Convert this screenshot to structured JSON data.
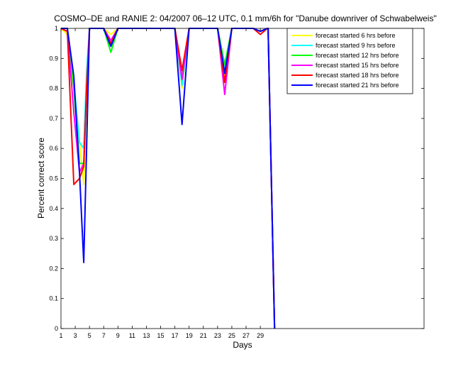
{
  "chart_data": {
    "type": "line",
    "title": "COSMO–DE and RANIE 2: 04/2007 06–12 UTC, 0.1 mm/6h for \"Danube downriver of Schwabelweis\"",
    "xlabel": "Days",
    "ylabel": "Percent correct score",
    "xlim": [
      1,
      52
    ],
    "ylim": [
      0,
      1
    ],
    "xticks": [
      "1",
      "3",
      "5",
      "7",
      "9",
      "11",
      "13",
      "15",
      "17",
      "19",
      "21",
      "23",
      "25",
      "27",
      "29"
    ],
    "yticks": [
      "0",
      "0.1",
      "0.2",
      "0.3",
      "0.4",
      "0.5",
      "0.6",
      "0.7",
      "0.8",
      "0.9",
      "1"
    ],
    "legend_position": "top-right",
    "grid": false,
    "series": [
      {
        "name": "forecast started 6 hrs before",
        "color": "#ffff00",
        "points": [
          [
            1,
            1
          ],
          [
            1.9,
            0.98
          ],
          [
            2.8,
            0.8
          ],
          [
            3.6,
            0.62
          ],
          [
            4.2,
            0.48
          ],
          [
            4.6,
            0.7
          ],
          [
            5,
            1
          ],
          [
            7,
            1
          ],
          [
            8,
            0.98
          ],
          [
            9,
            1
          ],
          [
            17,
            1
          ],
          [
            18,
            0.8
          ],
          [
            19,
            1
          ],
          [
            23,
            1
          ],
          [
            24,
            0.84
          ],
          [
            25,
            1
          ],
          [
            28,
            1
          ],
          [
            29,
            0.99
          ],
          [
            30,
            1
          ],
          [
            30.1,
            1
          ],
          [
            31,
            0
          ]
        ]
      },
      {
        "name": "forecast started 9 hrs before",
        "color": "#00ffff",
        "points": [
          [
            1,
            1
          ],
          [
            1.9,
            1
          ],
          [
            2.8,
            0.82
          ],
          [
            3.6,
            0.62
          ],
          [
            4.2,
            0.6
          ],
          [
            4.6,
            0.85
          ],
          [
            5,
            1
          ],
          [
            7,
            1
          ],
          [
            8,
            0.95
          ],
          [
            9,
            1
          ],
          [
            17,
            1
          ],
          [
            18,
            0.81
          ],
          [
            19,
            1
          ],
          [
            23,
            1
          ],
          [
            24,
            0.86
          ],
          [
            25,
            1
          ],
          [
            28,
            1
          ],
          [
            29,
            0.99
          ],
          [
            30,
            1
          ],
          [
            30.1,
            1
          ],
          [
            31,
            0
          ]
        ]
      },
      {
        "name": "forecast started 12 hrs before",
        "color": "#00ff00",
        "points": [
          [
            1,
            1
          ],
          [
            1.9,
            1
          ],
          [
            2.8,
            0.8
          ],
          [
            3.6,
            0.55
          ],
          [
            4.2,
            0.55
          ],
          [
            4.6,
            0.8
          ],
          [
            5,
            1
          ],
          [
            7,
            1
          ],
          [
            8,
            0.92
          ],
          [
            9,
            1
          ],
          [
            17,
            1
          ],
          [
            18,
            0.84
          ],
          [
            19,
            1
          ],
          [
            23,
            1
          ],
          [
            24,
            0.88
          ],
          [
            25,
            1
          ],
          [
            28,
            1
          ],
          [
            29,
            0.99
          ],
          [
            30,
            1
          ],
          [
            30.1,
            1
          ],
          [
            31,
            0
          ]
        ]
      },
      {
        "name": "forecast started 15 hrs before",
        "color": "#ff00ff",
        "points": [
          [
            1,
            1
          ],
          [
            1.9,
            0.99
          ],
          [
            2.8,
            0.72
          ],
          [
            3.6,
            0.52
          ],
          [
            4.2,
            0.55
          ],
          [
            4.6,
            0.8
          ],
          [
            5,
            1
          ],
          [
            7,
            1
          ],
          [
            8,
            0.96
          ],
          [
            9,
            1
          ],
          [
            17,
            1
          ],
          [
            18,
            0.83
          ],
          [
            19,
            1
          ],
          [
            23,
            1
          ],
          [
            24,
            0.78
          ],
          [
            25,
            1
          ],
          [
            28,
            1
          ],
          [
            29,
            0.99
          ],
          [
            30,
            1
          ],
          [
            30.1,
            1
          ],
          [
            31,
            0
          ]
        ]
      },
      {
        "name": "forecast started 18 hrs before",
        "color": "#ff0000",
        "points": [
          [
            1,
            1
          ],
          [
            1.9,
            0.99
          ],
          [
            2.8,
            0.48
          ],
          [
            3.6,
            0.5
          ],
          [
            4.2,
            0.54
          ],
          [
            4.6,
            0.8
          ],
          [
            5,
            1
          ],
          [
            7,
            1
          ],
          [
            8,
            0.95
          ],
          [
            9,
            1
          ],
          [
            17,
            1
          ],
          [
            18,
            0.86
          ],
          [
            19,
            1
          ],
          [
            23,
            1
          ],
          [
            24,
            0.82
          ],
          [
            25,
            1
          ],
          [
            28,
            1
          ],
          [
            29,
            0.98
          ],
          [
            30,
            1
          ],
          [
            30.1,
            1
          ],
          [
            31,
            0
          ]
        ]
      },
      {
        "name": "forecast started 21 hrs before",
        "color": "#0000ff",
        "points": [
          [
            1,
            1
          ],
          [
            1.9,
            1
          ],
          [
            2.8,
            0.84
          ],
          [
            3.6,
            0.52
          ],
          [
            4.2,
            0.22
          ],
          [
            4.6,
            0.6
          ],
          [
            5,
            1
          ],
          [
            7,
            1
          ],
          [
            8,
            0.94
          ],
          [
            9,
            1
          ],
          [
            17,
            1
          ],
          [
            18,
            0.68
          ],
          [
            19,
            1
          ],
          [
            23,
            1
          ],
          [
            24,
            0.85
          ],
          [
            25,
            1
          ],
          [
            28,
            1
          ],
          [
            29,
            0.99
          ],
          [
            30,
            1
          ],
          [
            30.1,
            1
          ],
          [
            31,
            0
          ]
        ]
      }
    ]
  }
}
